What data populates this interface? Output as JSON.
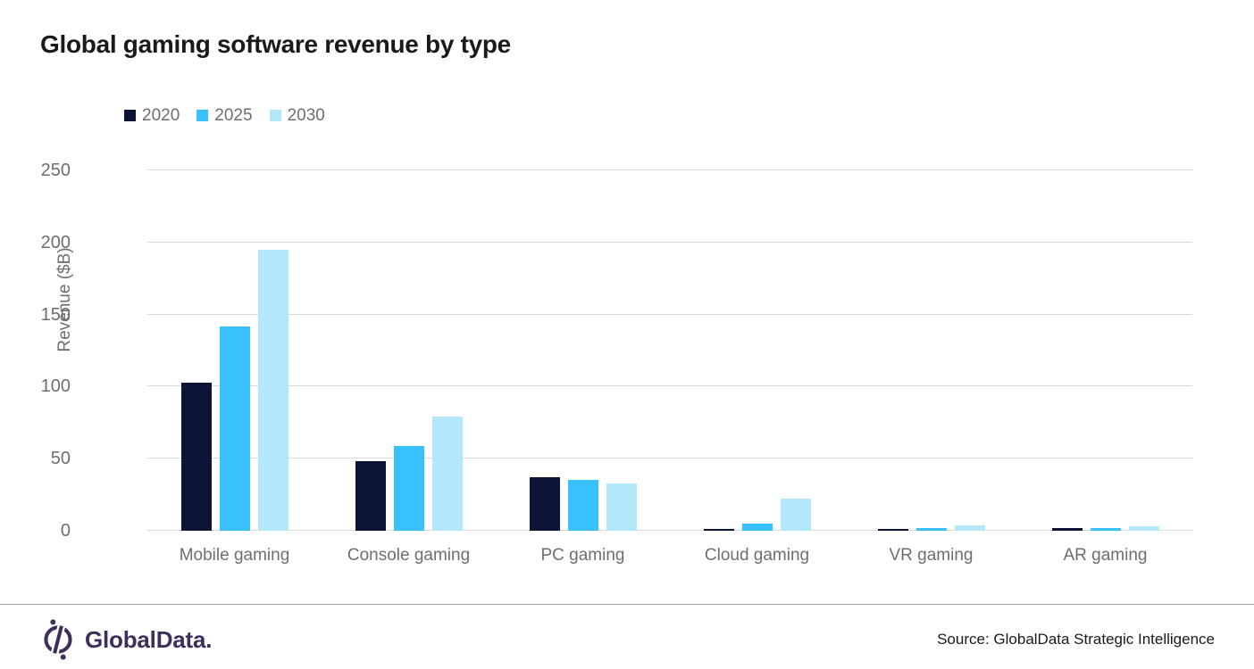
{
  "page": {
    "background": "#ffffff"
  },
  "chart_data": {
    "type": "bar",
    "title": "Global gaming software revenue by type",
    "ylabel": "Revenue ($B)",
    "xlabel": "",
    "categories": [
      "Mobile gaming",
      "Console gaming",
      "PC gaming",
      "Cloud gaming",
      "VR gaming",
      "AR gaming"
    ],
    "series": [
      {
        "name": "2020",
        "color": "#0D1436",
        "values": [
          103,
          48,
          37,
          1,
          1,
          2
        ]
      },
      {
        "name": "2025",
        "color": "#38C1FC",
        "values": [
          142,
          59,
          35,
          5,
          2,
          2
        ]
      },
      {
        "name": "2030",
        "color": "#B3E7FA",
        "values": [
          195,
          79,
          33,
          22,
          4,
          3
        ]
      }
    ],
    "ylim": [
      0,
      250
    ],
    "yticks": [
      0,
      50,
      100,
      150,
      200,
      250
    ],
    "grid": true,
    "legend_position": "top-left"
  },
  "footer": {
    "logo_text": "GlobalData.",
    "logo_color": "#3E2E5C",
    "source": "Source: GlobalData Strategic Intelligence"
  }
}
